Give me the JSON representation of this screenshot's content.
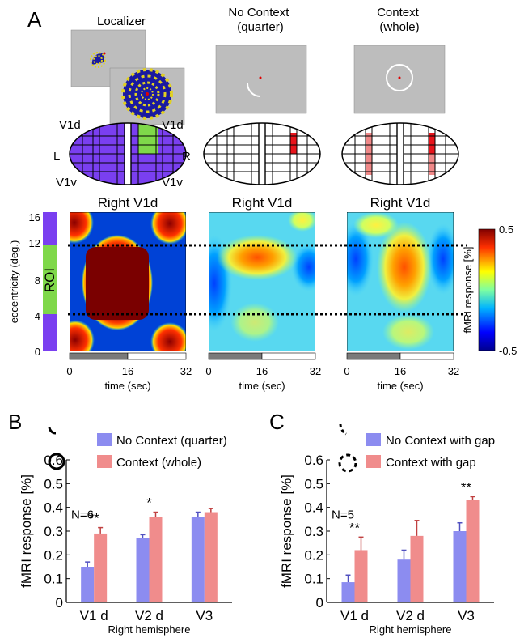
{
  "panel_labels": {
    "a": "A",
    "b": "B",
    "c": "C"
  },
  "panel_a": {
    "stim_titles": {
      "localizer": "Localizer",
      "no_context": "No Context\n(quarter)",
      "context": "Context\n(whole)"
    },
    "hemifield_labels": {
      "v1d_left": "V1d",
      "v1d_right": "V1d",
      "v1v_left": "V1v",
      "v1v_right": "V1v",
      "L": "L",
      "R": "R"
    },
    "heatmap_title": "Right V1d",
    "roi_label": "ROI",
    "y_label": "eccentricity (deg.)",
    "y_ticks": [
      "16",
      "12",
      "8",
      "4",
      "0"
    ],
    "x_label": "time (sec)",
    "x_ticks": [
      "0",
      "16",
      "32"
    ],
    "colorbar": {
      "label": "fMRI response [%]",
      "max": "0.5",
      "min": "-0.5"
    },
    "colors": {
      "purple": "#7a3ff0",
      "green": "#7fd84a",
      "red": "#e8141c",
      "pink": "#f08888",
      "stim_gray": "#bdbdbd"
    }
  },
  "chart_data": [
    {
      "type": "bar",
      "panel": "B",
      "title": "",
      "n_label": "N=6",
      "xlabel": "Right hemisphere",
      "ylabel": "fMRI response [%]",
      "categories": [
        "V1 d",
        "V2 d",
        "V3"
      ],
      "series": [
        {
          "name": "No Context (quarter)",
          "color": "#8c8cf0",
          "values": [
            0.15,
            0.27,
            0.36
          ],
          "errors": [
            0.02,
            0.015,
            0.02
          ]
        },
        {
          "name": "Context (whole)",
          "color": "#f08c8c",
          "values": [
            0.29,
            0.36,
            0.38
          ],
          "errors": [
            0.025,
            0.02,
            0.015
          ]
        }
      ],
      "significance": [
        "**",
        "*",
        ""
      ],
      "ylim": [
        0,
        0.6
      ],
      "yticks": [
        "0",
        "0.1",
        "0.2",
        "0.3",
        "0.4",
        "0.5",
        "0.6"
      ]
    },
    {
      "type": "bar",
      "panel": "C",
      "title": "",
      "n_label": "N=5",
      "xlabel": "Right hemisphere",
      "ylabel": "fMRI response [%]",
      "categories": [
        "V1 d",
        "V2 d",
        "V3"
      ],
      "series": [
        {
          "name": "No Context with gap",
          "color": "#8c8cf0",
          "values": [
            0.085,
            0.18,
            0.3
          ],
          "errors": [
            0.03,
            0.04,
            0.035
          ]
        },
        {
          "name": "Context with gap",
          "color": "#f08c8c",
          "values": [
            0.22,
            0.28,
            0.43
          ],
          "errors": [
            0.055,
            0.065,
            0.015
          ]
        }
      ],
      "significance": [
        "**",
        "",
        "**"
      ],
      "ylim": [
        0,
        0.6
      ],
      "yticks": [
        "0",
        "0.1",
        "0.2",
        "0.3",
        "0.4",
        "0.5",
        "0.6"
      ]
    }
  ]
}
